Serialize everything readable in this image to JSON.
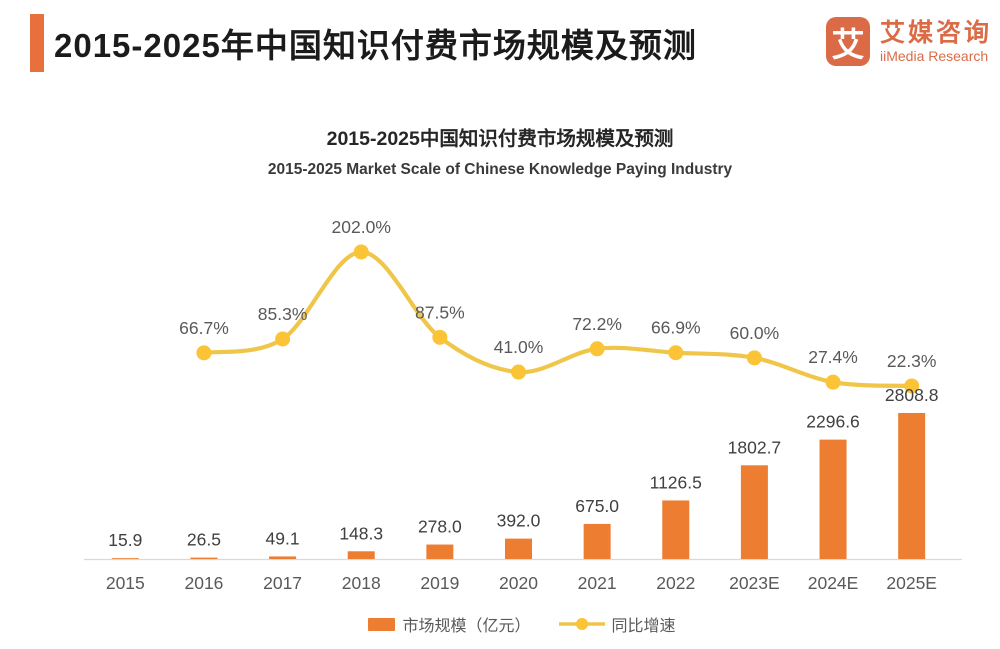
{
  "header": {
    "title": "2015-2025年中国知识付费市场规模及预测"
  },
  "logo": {
    "icon_char": "艾",
    "name_cn": "艾媒咨询",
    "name_en": "iiMedia Research"
  },
  "chart_data": {
    "type": "combo",
    "title": "2015-2025中国知识付费市场规模及预测",
    "subtitle": "2015-2025 Market Scale of Chinese Knowledge Paying Industry",
    "categories": [
      "2015",
      "2016",
      "2017",
      "2018",
      "2019",
      "2020",
      "2021",
      "2022",
      "2023E",
      "2024E",
      "2025E"
    ],
    "series": [
      {
        "name": "市场规模（亿元）",
        "type": "bar",
        "values": [
          15.9,
          26.5,
          49.1,
          148.3,
          278.0,
          392.0,
          675.0,
          1126.5,
          1802.7,
          2296.6,
          2808.8
        ],
        "label_format": "fixed1"
      },
      {
        "name": "同比增速",
        "type": "line",
        "values": [
          null,
          66.7,
          85.3,
          202.0,
          87.5,
          41.0,
          72.2,
          66.9,
          60.0,
          27.4,
          22.3
        ],
        "unit": "%",
        "label_format": "percent1"
      }
    ],
    "legend_position": "bottom",
    "grid": false,
    "y_axes_visible": false
  },
  "colors": {
    "accent-bar": "#E8703C",
    "logo-orange": "#DB6B47",
    "bar": "#ED7D31",
    "line": "#F0C64A",
    "marker": "#FBC436",
    "axis-line": "#D9D9D9"
  }
}
